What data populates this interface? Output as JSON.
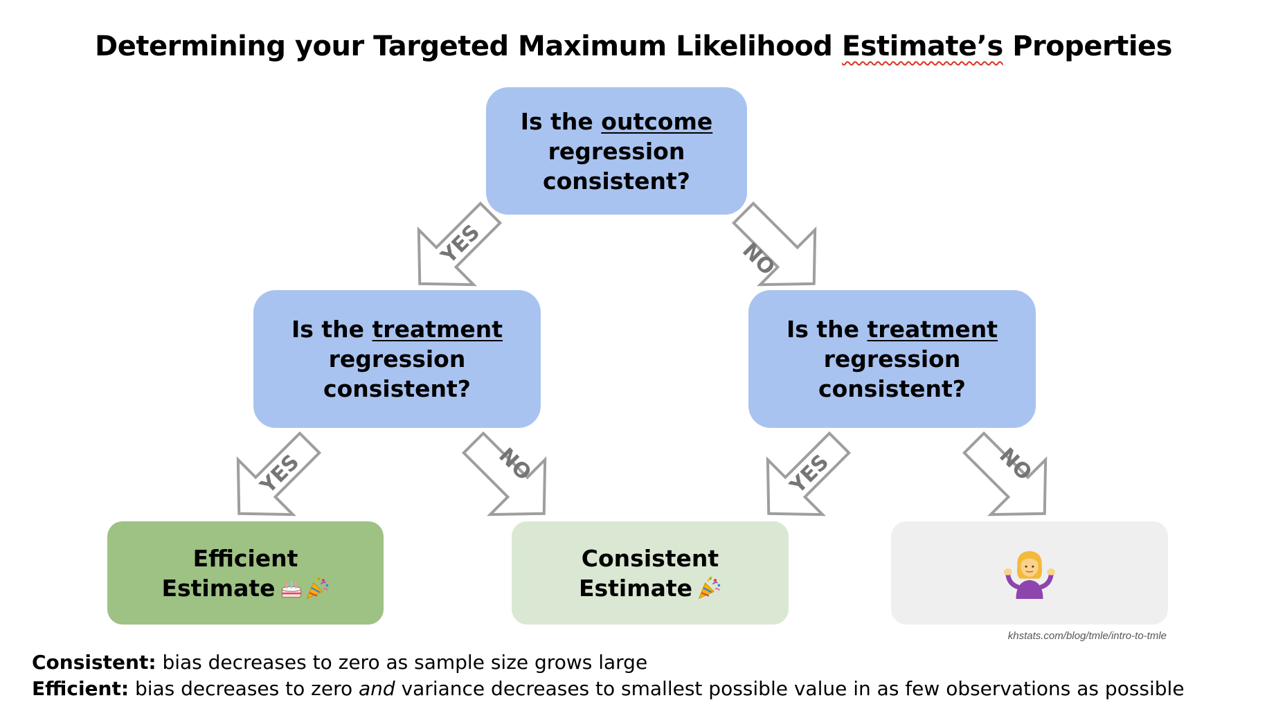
{
  "title": {
    "before": "Determining your Targeted Maximum Likelihood ",
    "squiggle": "Estimate’s",
    "after": " Properties"
  },
  "nodes": {
    "root": {
      "pre": "Is the ",
      "underlined": "outcome",
      "rest1": "regression",
      "rest2": "consistent?"
    },
    "left": {
      "pre": "Is the ",
      "underlined": "treatment",
      "rest1": "regression",
      "rest2": "consistent?"
    },
    "right": {
      "pre": "Is the ",
      "underlined": "treatment",
      "rest1": "regression",
      "rest2": "consistent?"
    },
    "efficient": {
      "line1": "Efficient",
      "line2": "Estimate"
    },
    "consistent": {
      "line1": "Consistent",
      "line2": "Estimate"
    }
  },
  "arrows": {
    "yes": "YES",
    "no": "NO"
  },
  "icons": {
    "efficient": [
      "cake-icon",
      "party-popper-icon"
    ],
    "consistent": [
      "party-popper-icon"
    ],
    "unknown": [
      "person-shrugging-icon"
    ]
  },
  "colors": {
    "question_box": "#a9c3f0",
    "efficient_box": "#9ec184",
    "consistent_box": "#dae8d3",
    "unknown_box": "#efefef",
    "arrow": "#9e9e9e"
  },
  "credit": "khstats.com/blog/tmle/intro-to-tmle",
  "definitions": {
    "consistent_term": "Consistent:",
    "consistent_text": " bias decreases to zero as sample size grows large",
    "efficient_term": "Efficient:",
    "efficient_text_1": " bias decreases to zero ",
    "efficient_text_and": "and",
    "efficient_text_2": " variance decreases to smallest possible value in as few observations as possible"
  }
}
